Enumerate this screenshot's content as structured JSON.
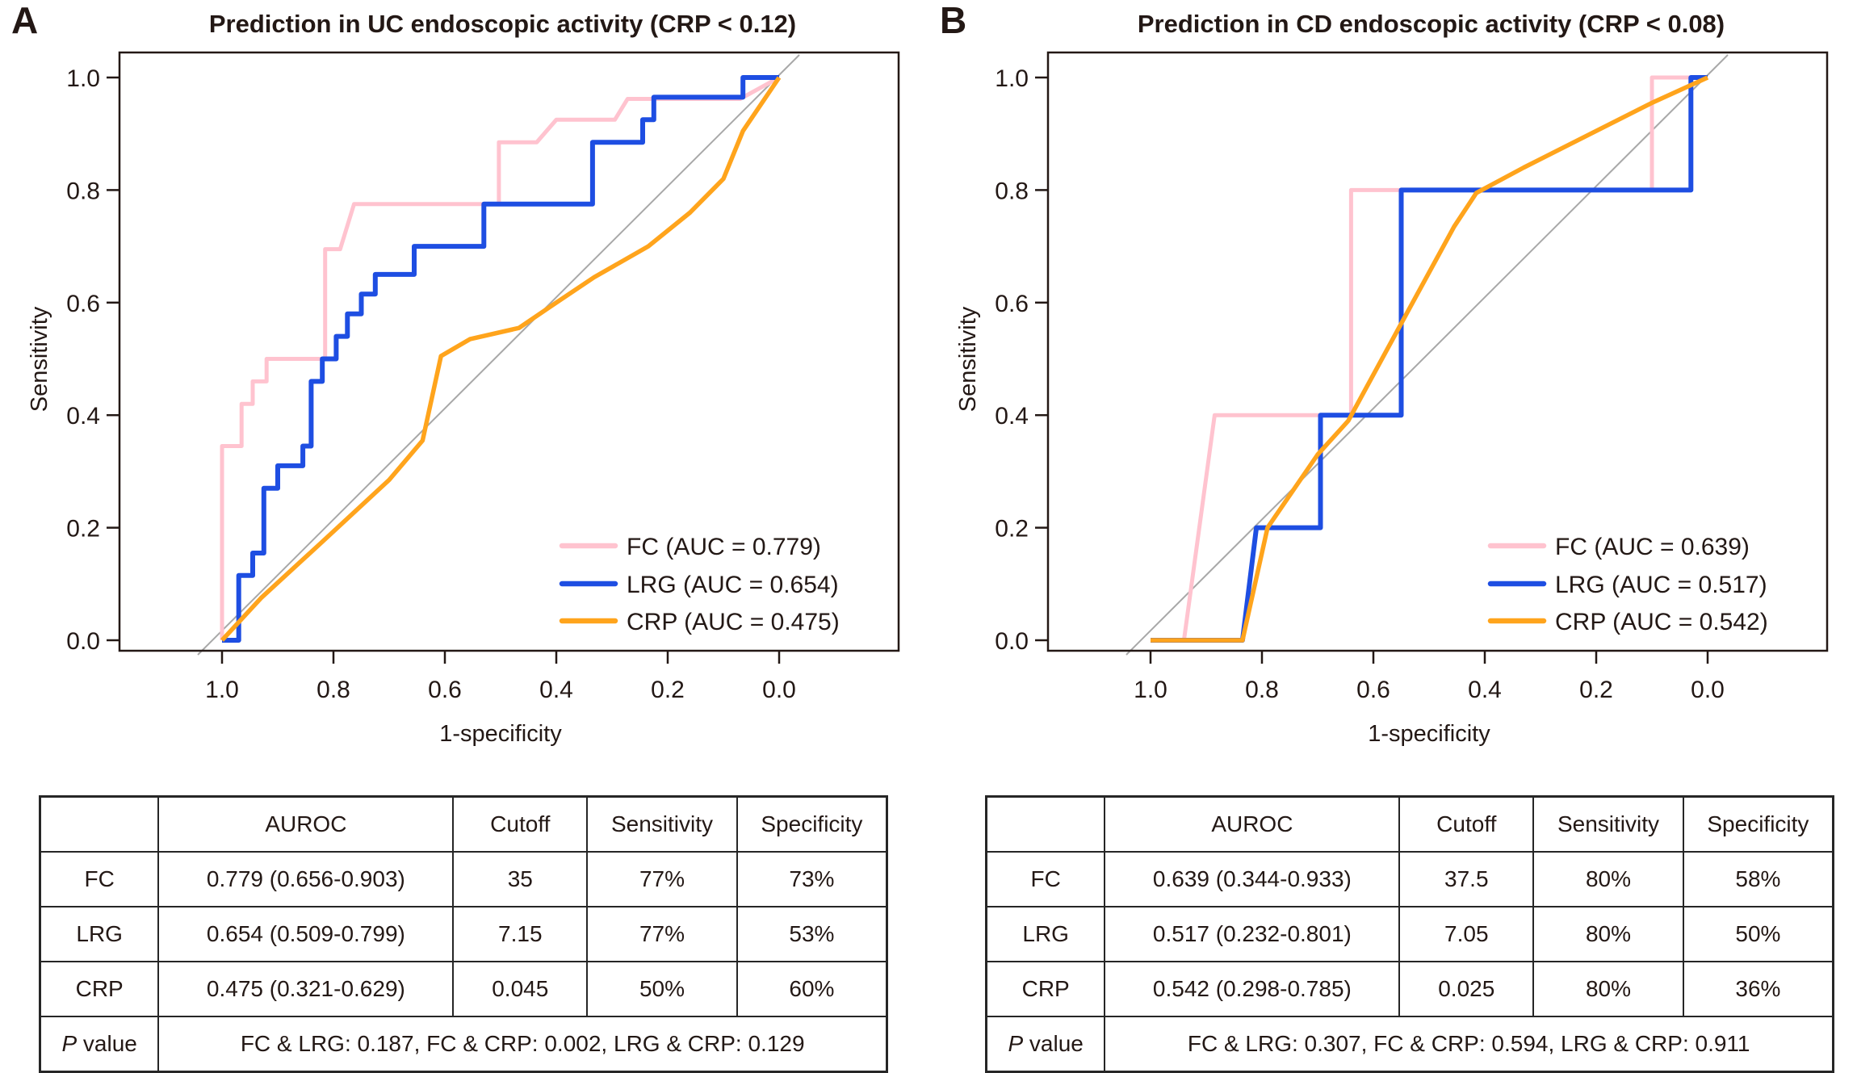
{
  "colors": {
    "text": "#231815",
    "frame": "#231815",
    "diagonal": "#a8a8a8",
    "table_border": "#262626",
    "background": "#ffffff",
    "fc_pink": "#ffc3cf",
    "lrg_blue": "#1e4ee2",
    "crp_orange": "#ffa41c"
  },
  "chart_data": [
    {
      "panel_label": "A",
      "type": "line",
      "title": "Prediction in UC endoscopic activity (CRP < 0.12)",
      "xlabel": "1-specificity",
      "ylabel": "Sensitivity",
      "x_axis_reversed": true,
      "xlim": [
        1.0,
        0.0
      ],
      "ylim": [
        0.0,
        1.0
      ],
      "x_ticks": [
        "1.0",
        "0.8",
        "0.6",
        "0.4",
        "0.2",
        "0.0"
      ],
      "y_ticks": [
        "0.0",
        "0.2",
        "0.4",
        "0.6",
        "0.8",
        "1.0"
      ],
      "grid": false,
      "diagonal_reference": true,
      "legend_position": "bottom-right",
      "series": [
        {
          "name": "FC (AUC = 0.779)",
          "short_name": "FC",
          "auc": 0.779,
          "color": "#ffc3cf",
          "points": [
            [
              1.0,
              0.0
            ],
            [
              1.0,
              0.345
            ],
            [
              0.965,
              0.345
            ],
            [
              0.965,
              0.42
            ],
            [
              0.945,
              0.42
            ],
            [
              0.945,
              0.46
            ],
            [
              0.92,
              0.46
            ],
            [
              0.92,
              0.5
            ],
            [
              0.815,
              0.5
            ],
            [
              0.815,
              0.695
            ],
            [
              0.788,
              0.695
            ],
            [
              0.763,
              0.775
            ],
            [
              0.503,
              0.775
            ],
            [
              0.503,
              0.885
            ],
            [
              0.435,
              0.885
            ],
            [
              0.4,
              0.925
            ],
            [
              0.295,
              0.925
            ],
            [
              0.272,
              0.962
            ],
            [
              0.07,
              0.962
            ],
            [
              0.0,
              1.0
            ]
          ]
        },
        {
          "name": "LRG (AUC = 0.654)",
          "short_name": "LRG",
          "auc": 0.654,
          "color": "#1e4ee2",
          "points": [
            [
              1.0,
              0.0
            ],
            [
              0.97,
              0.0
            ],
            [
              0.97,
              0.115
            ],
            [
              0.945,
              0.115
            ],
            [
              0.945,
              0.155
            ],
            [
              0.925,
              0.155
            ],
            [
              0.925,
              0.27
            ],
            [
              0.9,
              0.27
            ],
            [
              0.9,
              0.31
            ],
            [
              0.855,
              0.31
            ],
            [
              0.855,
              0.345
            ],
            [
              0.84,
              0.345
            ],
            [
              0.84,
              0.46
            ],
            [
              0.82,
              0.46
            ],
            [
              0.82,
              0.5
            ],
            [
              0.795,
              0.5
            ],
            [
              0.795,
              0.54
            ],
            [
              0.775,
              0.54
            ],
            [
              0.775,
              0.58
            ],
            [
              0.75,
              0.58
            ],
            [
              0.75,
              0.615
            ],
            [
              0.725,
              0.615
            ],
            [
              0.725,
              0.65
            ],
            [
              0.655,
              0.65
            ],
            [
              0.655,
              0.7
            ],
            [
              0.53,
              0.7
            ],
            [
              0.53,
              0.775
            ],
            [
              0.335,
              0.775
            ],
            [
              0.335,
              0.885
            ],
            [
              0.245,
              0.885
            ],
            [
              0.245,
              0.925
            ],
            [
              0.225,
              0.925
            ],
            [
              0.225,
              0.965
            ],
            [
              0.065,
              0.965
            ],
            [
              0.065,
              1.0
            ],
            [
              0.0,
              1.0
            ]
          ]
        },
        {
          "name": "CRP (AUC = 0.475)",
          "short_name": "CRP",
          "auc": 0.475,
          "color": "#ffa41c",
          "points": [
            [
              1.0,
              0.0
            ],
            [
              0.93,
              0.075
            ],
            [
              0.82,
              0.175
            ],
            [
              0.7,
              0.285
            ],
            [
              0.64,
              0.355
            ],
            [
              0.607,
              0.505
            ],
            [
              0.555,
              0.535
            ],
            [
              0.467,
              0.555
            ],
            [
              0.4,
              0.6
            ],
            [
              0.332,
              0.645
            ],
            [
              0.235,
              0.7
            ],
            [
              0.16,
              0.76
            ],
            [
              0.1,
              0.82
            ],
            [
              0.065,
              0.905
            ],
            [
              0.0,
              1.0
            ]
          ]
        }
      ],
      "table": {
        "headers": [
          "",
          "AUROC",
          "Cutoff",
          "Sensitivity",
          "Specificity"
        ],
        "rows": [
          [
            "FC",
            "0.779 (0.656-0.903)",
            "35",
            "77%",
            "73%"
          ],
          [
            "LRG",
            "0.654 (0.509-0.799)",
            "7.15",
            "77%",
            "53%"
          ],
          [
            "CRP",
            "0.475 (0.321-0.629)",
            "0.045",
            "50%",
            "60%"
          ]
        ],
        "p_label_italic": "P",
        "p_label_rest": " value",
        "p_values": "FC & LRG: 0.187, FC & CRP: 0.002, LRG & CRP: 0.129"
      }
    },
    {
      "panel_label": "B",
      "type": "line",
      "title": "Prediction in CD endoscopic activity (CRP < 0.08)",
      "xlabel": "1-specificity",
      "ylabel": "Sensitivity",
      "x_axis_reversed": true,
      "xlim": [
        1.0,
        0.0
      ],
      "ylim": [
        0.0,
        1.0
      ],
      "x_ticks": [
        "1.0",
        "0.8",
        "0.6",
        "0.4",
        "0.2",
        "0.0"
      ],
      "y_ticks": [
        "0.0",
        "0.2",
        "0.4",
        "0.6",
        "0.8",
        "1.0"
      ],
      "grid": false,
      "diagonal_reference": true,
      "legend_position": "bottom-right",
      "series": [
        {
          "name": "FC (AUC = 0.639)",
          "short_name": "FC",
          "auc": 0.639,
          "color": "#ffc3cf",
          "points": [
            [
              1.0,
              0.0
            ],
            [
              0.94,
              0.0
            ],
            [
              0.885,
              0.4
            ],
            [
              0.64,
              0.4
            ],
            [
              0.64,
              0.8
            ],
            [
              0.1,
              0.8
            ],
            [
              0.1,
              1.0
            ],
            [
              0.0,
              1.0
            ]
          ]
        },
        {
          "name": "LRG (AUC = 0.517)",
          "short_name": "LRG",
          "auc": 0.517,
          "color": "#1e4ee2",
          "points": [
            [
              1.0,
              0.0
            ],
            [
              0.835,
              0.0
            ],
            [
              0.81,
              0.2
            ],
            [
              0.695,
              0.2
            ],
            [
              0.695,
              0.4
            ],
            [
              0.55,
              0.4
            ],
            [
              0.55,
              0.8
            ],
            [
              0.03,
              0.8
            ],
            [
              0.03,
              1.0
            ],
            [
              0.0,
              1.0
            ]
          ]
        },
        {
          "name": "CRP (AUC = 0.542)",
          "short_name": "CRP",
          "auc": 0.542,
          "color": "#ffa41c",
          "points": [
            [
              1.0,
              0.0
            ],
            [
              0.835,
              0.0
            ],
            [
              0.79,
              0.2
            ],
            [
              0.7,
              0.33
            ],
            [
              0.645,
              0.39
            ],
            [
              0.535,
              0.59
            ],
            [
              0.455,
              0.735
            ],
            [
              0.415,
              0.795
            ],
            [
              0.33,
              0.84
            ],
            [
              0.2,
              0.905
            ],
            [
              0.1,
              0.955
            ],
            [
              0.0,
              1.0
            ]
          ]
        }
      ],
      "table": {
        "headers": [
          "",
          "AUROC",
          "Cutoff",
          "Sensitivity",
          "Specificity"
        ],
        "rows": [
          [
            "FC",
            "0.639 (0.344-0.933)",
            "37.5",
            "80%",
            "58%"
          ],
          [
            "LRG",
            "0.517 (0.232-0.801)",
            "7.05",
            "80%",
            "50%"
          ],
          [
            "CRP",
            "0.542 (0.298-0.785)",
            "0.025",
            "80%",
            "36%"
          ]
        ],
        "p_label_italic": "P",
        "p_label_rest": " value",
        "p_values": "FC & LRG: 0.307, FC & CRP: 0.594, LRG & CRP: 0.911"
      }
    }
  ]
}
